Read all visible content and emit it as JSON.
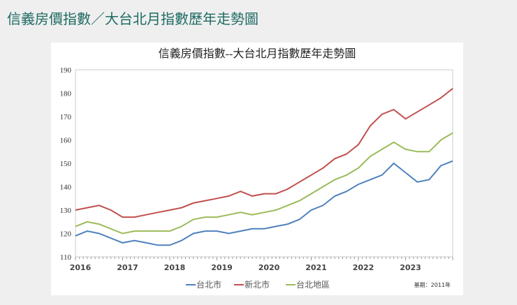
{
  "page": {
    "title": "信義房價指數／大台北月指數歷年走勢圖"
  },
  "chart_data": {
    "type": "line",
    "title": "信義房價指數--大台北月指數歷年走勢圖",
    "note": "基期：2011年",
    "x": [
      2016,
      2016.25,
      2016.5,
      2016.75,
      2017,
      2017.25,
      2017.5,
      2017.75,
      2018,
      2018.25,
      2018.5,
      2018.75,
      2019,
      2019.25,
      2019.5,
      2019.75,
      2020,
      2020.25,
      2020.5,
      2020.75,
      2021,
      2021.25,
      2021.5,
      2021.75,
      2022,
      2022.25,
      2022.5,
      2022.75,
      2023,
      2023.25,
      2023.5,
      2023.75,
      2024
    ],
    "xticks": [
      "2016",
      "2017",
      "2018",
      "2019",
      "2020",
      "2021",
      "2022",
      "2023"
    ],
    "yticks": [
      110,
      120,
      130,
      140,
      150,
      160,
      170,
      180,
      190
    ],
    "ylim": [
      110,
      190
    ],
    "legend": "bottom",
    "series": [
      {
        "name": "台北市",
        "color": "#4f81bd",
        "values": [
          119,
          121,
          120,
          118,
          116,
          117,
          116,
          115,
          115,
          117,
          120,
          121,
          121,
          120,
          121,
          122,
          122,
          123,
          124,
          126,
          130,
          132,
          136,
          138,
          141,
          143,
          145,
          150,
          146,
          142,
          143,
          149,
          151
        ]
      },
      {
        "name": "新北市",
        "color": "#c0504d",
        "values": [
          130,
          131,
          132,
          130,
          127,
          127,
          128,
          129,
          130,
          131,
          133,
          134,
          135,
          136,
          138,
          136,
          137,
          137,
          139,
          142,
          145,
          148,
          152,
          154,
          158,
          166,
          171,
          173,
          169,
          172,
          175,
          178,
          182
        ]
      },
      {
        "name": "台北地區",
        "color": "#9bbb59",
        "values": [
          123,
          125,
          124,
          122,
          120,
          121,
          121,
          121,
          121,
          123,
          126,
          127,
          127,
          128,
          129,
          128,
          129,
          130,
          132,
          134,
          137,
          140,
          143,
          145,
          148,
          153,
          156,
          159,
          156,
          155,
          155,
          160,
          163
        ]
      }
    ]
  }
}
